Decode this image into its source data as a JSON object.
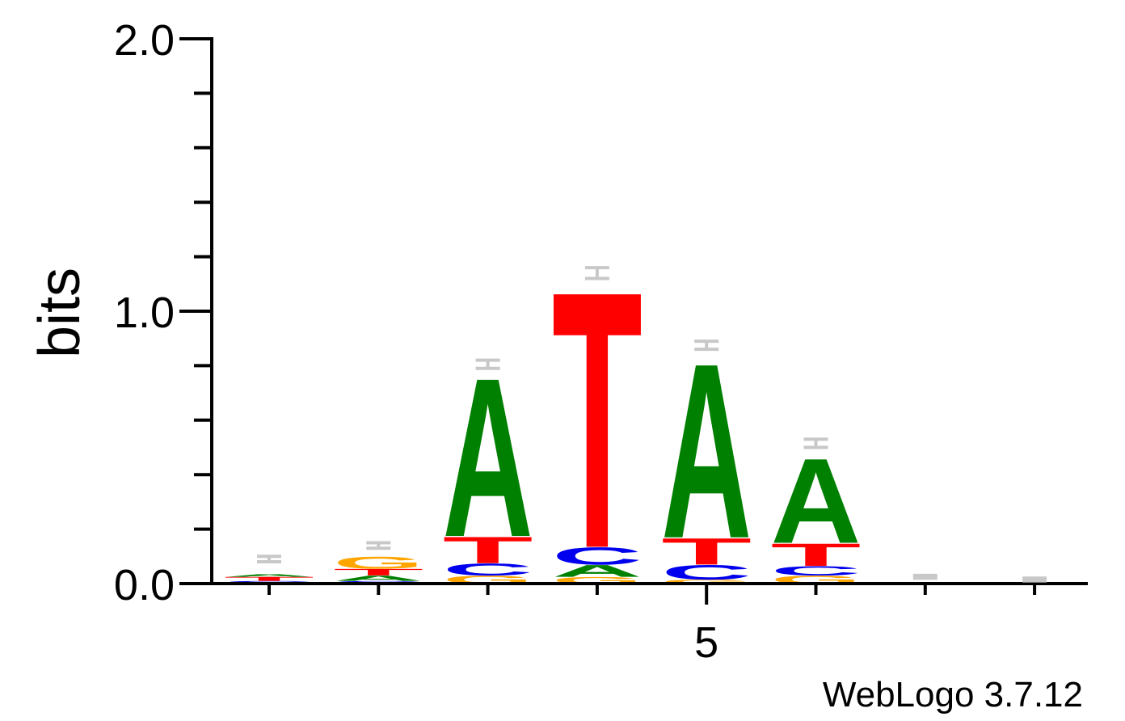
{
  "chart_data": {
    "type": "sequence-logo",
    "ylabel": "bits",
    "ylim": [
      0,
      2
    ],
    "y_tick_labels": [
      "0.0",
      "1.0",
      "2.0"
    ],
    "y_tick_values": [
      0.0,
      1.0,
      2.0
    ],
    "y_minor_step": 0.2,
    "x_tick_label": "5",
    "x_tick_label_position": 5,
    "positions": [
      1,
      2,
      3,
      4,
      5,
      6,
      7,
      8
    ],
    "colors": {
      "A": "#008000",
      "C": "#0000ee",
      "G": "#ffa500",
      "T": "#ff0000",
      "error": "#c8c8c8"
    },
    "columns": [
      {
        "position": 1,
        "stack": [
          {
            "letter": "C",
            "bits": 0.01
          },
          {
            "letter": "T",
            "bits": 0.015
          },
          {
            "letter": "A",
            "bits": 0.01
          }
        ],
        "error": [
          0.08,
          0.1
        ]
      },
      {
        "position": 2,
        "stack": [
          {
            "letter": "C",
            "bits": 0.01
          },
          {
            "letter": "A",
            "bits": 0.02
          },
          {
            "letter": "T",
            "bits": 0.025
          },
          {
            "letter": "G",
            "bits": 0.045
          }
        ],
        "error": [
          0.13,
          0.15
        ]
      },
      {
        "position": 3,
        "stack": [
          {
            "letter": "G",
            "bits": 0.03
          },
          {
            "letter": "C",
            "bits": 0.045
          },
          {
            "letter": "T",
            "bits": 0.1
          },
          {
            "letter": "A",
            "bits": 0.6
          }
        ],
        "error": [
          0.79,
          0.82
        ]
      },
      {
        "position": 4,
        "stack": [
          {
            "letter": "G",
            "bits": 0.025
          },
          {
            "letter": "A",
            "bits": 0.045
          },
          {
            "letter": "C",
            "bits": 0.065
          },
          {
            "letter": "T",
            "bits": 0.97
          }
        ],
        "error": [
          1.12,
          1.16
        ]
      },
      {
        "position": 5,
        "stack": [
          {
            "letter": "G",
            "bits": 0.015
          },
          {
            "letter": "C",
            "bits": 0.055
          },
          {
            "letter": "T",
            "bits": 0.1
          },
          {
            "letter": "A",
            "bits": 0.66
          }
        ],
        "error": [
          0.86,
          0.89
        ]
      },
      {
        "position": 6,
        "stack": [
          {
            "letter": "G",
            "bits": 0.03
          },
          {
            "letter": "C",
            "bits": 0.035
          },
          {
            "letter": "T",
            "bits": 0.085
          },
          {
            "letter": "A",
            "bits": 0.32
          }
        ],
        "error": [
          0.5,
          0.53
        ]
      },
      {
        "position": 7,
        "stack": [],
        "error": [
          0.02,
          0.03
        ]
      },
      {
        "position": 8,
        "stack": [],
        "error": [
          0.01,
          0.02
        ]
      }
    ]
  },
  "footer": {
    "label": "WebLogo 3.7.12"
  }
}
